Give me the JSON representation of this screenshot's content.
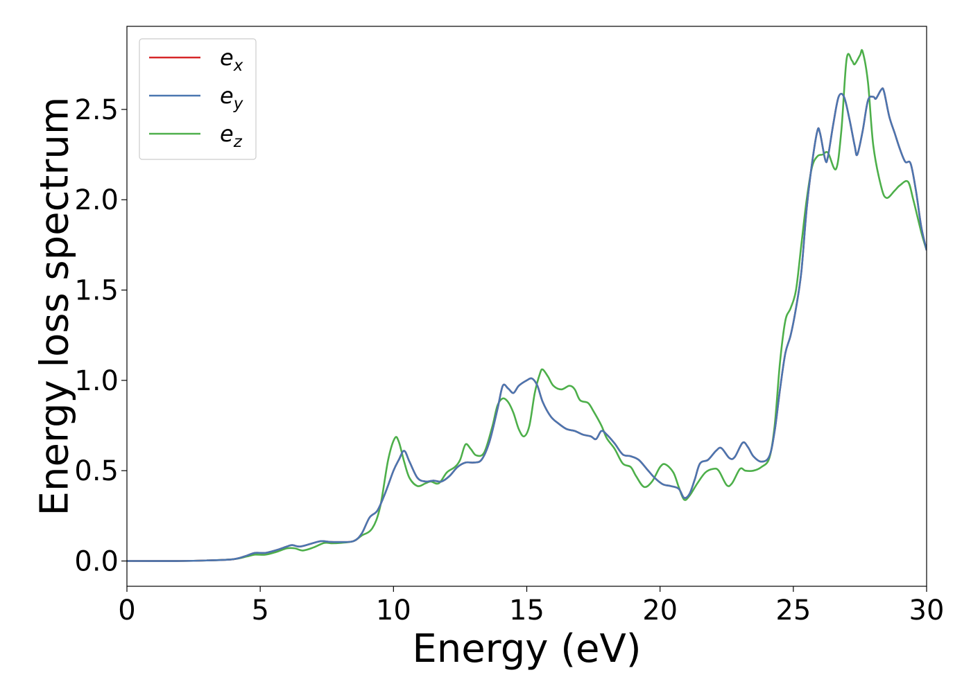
{
  "chart_data": {
    "type": "line",
    "title": "",
    "xlabel": "Energy (eV)",
    "ylabel": "Energy loss spectrum",
    "xlim": [
      0,
      30
    ],
    "ylim": [
      -0.14,
      2.96
    ],
    "xticks": [
      "0",
      "5",
      "10",
      "15",
      "20",
      "25",
      "30"
    ],
    "yticks": [
      "0.0",
      "0.5",
      "1.0",
      "1.5",
      "2.0",
      "2.5"
    ],
    "grid": false,
    "legend_position": "top-left",
    "series": [
      {
        "name": "e",
        "sub": "x",
        "color": "#d62728",
        "points": [
          [
            0,
            0
          ],
          [
            2,
            0
          ],
          [
            3,
            0.003
          ],
          [
            4,
            0.01
          ],
          [
            4.5,
            0.03
          ],
          [
            4.8,
            0.045
          ],
          [
            5.2,
            0.045
          ],
          [
            5.6,
            0.06
          ],
          [
            6,
            0.08
          ],
          [
            6.2,
            0.088
          ],
          [
            6.5,
            0.08
          ],
          [
            7,
            0.1
          ],
          [
            7.3,
            0.11
          ],
          [
            7.6,
            0.106
          ],
          [
            8,
            0.105
          ],
          [
            8.5,
            0.11
          ],
          [
            8.8,
            0.15
          ],
          [
            9.1,
            0.24
          ],
          [
            9.4,
            0.28
          ],
          [
            9.7,
            0.38
          ],
          [
            10.0,
            0.5
          ],
          [
            10.2,
            0.56
          ],
          [
            10.4,
            0.61
          ],
          [
            10.6,
            0.55
          ],
          [
            10.9,
            0.46
          ],
          [
            11.2,
            0.44
          ],
          [
            11.5,
            0.445
          ],
          [
            11.8,
            0.44
          ],
          [
            12.1,
            0.47
          ],
          [
            12.4,
            0.52
          ],
          [
            12.7,
            0.545
          ],
          [
            13.0,
            0.545
          ],
          [
            13.3,
            0.56
          ],
          [
            13.6,
            0.66
          ],
          [
            13.9,
            0.84
          ],
          [
            14.1,
            0.97
          ],
          [
            14.3,
            0.955
          ],
          [
            14.5,
            0.93
          ],
          [
            14.7,
            0.97
          ],
          [
            15.0,
            1.0
          ],
          [
            15.2,
            1.01
          ],
          [
            15.4,
            0.97
          ],
          [
            15.6,
            0.88
          ],
          [
            15.9,
            0.8
          ],
          [
            16.2,
            0.76
          ],
          [
            16.5,
            0.73
          ],
          [
            16.8,
            0.72
          ],
          [
            17.1,
            0.7
          ],
          [
            17.4,
            0.69
          ],
          [
            17.6,
            0.675
          ],
          [
            17.8,
            0.72
          ],
          [
            18.0,
            0.7
          ],
          [
            18.3,
            0.65
          ],
          [
            18.6,
            0.59
          ],
          [
            18.9,
            0.58
          ],
          [
            19.2,
            0.56
          ],
          [
            19.5,
            0.51
          ],
          [
            19.8,
            0.46
          ],
          [
            20.1,
            0.425
          ],
          [
            20.4,
            0.415
          ],
          [
            20.7,
            0.4
          ],
          [
            20.9,
            0.35
          ],
          [
            21.1,
            0.37
          ],
          [
            21.3,
            0.45
          ],
          [
            21.5,
            0.54
          ],
          [
            21.8,
            0.56
          ],
          [
            22.1,
            0.61
          ],
          [
            22.3,
            0.625
          ],
          [
            22.6,
            0.57
          ],
          [
            22.8,
            0.575
          ],
          [
            23.1,
            0.655
          ],
          [
            23.3,
            0.63
          ],
          [
            23.5,
            0.58
          ],
          [
            23.8,
            0.55
          ],
          [
            24.1,
            0.58
          ],
          [
            24.3,
            0.72
          ],
          [
            24.5,
            0.95
          ],
          [
            24.7,
            1.15
          ],
          [
            24.9,
            1.25
          ],
          [
            25.1,
            1.4
          ],
          [
            25.3,
            1.6
          ],
          [
            25.5,
            1.95
          ],
          [
            25.7,
            2.2
          ],
          [
            25.9,
            2.38
          ],
          [
            26.0,
            2.37
          ],
          [
            26.2,
            2.22
          ],
          [
            26.3,
            2.24
          ],
          [
            26.5,
            2.42
          ],
          [
            26.7,
            2.57
          ],
          [
            26.9,
            2.57
          ],
          [
            27.1,
            2.45
          ],
          [
            27.3,
            2.3
          ],
          [
            27.4,
            2.25
          ],
          [
            27.6,
            2.38
          ],
          [
            27.8,
            2.55
          ],
          [
            28.0,
            2.57
          ],
          [
            28.1,
            2.56
          ],
          [
            28.3,
            2.61
          ],
          [
            28.4,
            2.6
          ],
          [
            28.6,
            2.46
          ],
          [
            28.8,
            2.37
          ],
          [
            29.0,
            2.28
          ],
          [
            29.2,
            2.21
          ],
          [
            29.4,
            2.2
          ],
          [
            29.6,
            2.05
          ],
          [
            29.8,
            1.85
          ],
          [
            30,
            1.72
          ]
        ]
      },
      {
        "name": "e",
        "sub": "y",
        "color": "#4a76b0",
        "points": [
          [
            0,
            0
          ],
          [
            2,
            0
          ],
          [
            3,
            0.003
          ],
          [
            4,
            0.01
          ],
          [
            4.5,
            0.03
          ],
          [
            4.8,
            0.045
          ],
          [
            5.2,
            0.045
          ],
          [
            5.6,
            0.06
          ],
          [
            6,
            0.08
          ],
          [
            6.2,
            0.088
          ],
          [
            6.5,
            0.08
          ],
          [
            7,
            0.1
          ],
          [
            7.3,
            0.11
          ],
          [
            7.6,
            0.106
          ],
          [
            8,
            0.105
          ],
          [
            8.5,
            0.11
          ],
          [
            8.8,
            0.15
          ],
          [
            9.1,
            0.24
          ],
          [
            9.4,
            0.28
          ],
          [
            9.7,
            0.38
          ],
          [
            10.0,
            0.5
          ],
          [
            10.2,
            0.56
          ],
          [
            10.4,
            0.61
          ],
          [
            10.6,
            0.55
          ],
          [
            10.9,
            0.46
          ],
          [
            11.2,
            0.44
          ],
          [
            11.5,
            0.445
          ],
          [
            11.8,
            0.44
          ],
          [
            12.1,
            0.47
          ],
          [
            12.4,
            0.52
          ],
          [
            12.7,
            0.545
          ],
          [
            13.0,
            0.545
          ],
          [
            13.3,
            0.56
          ],
          [
            13.6,
            0.66
          ],
          [
            13.9,
            0.84
          ],
          [
            14.1,
            0.97
          ],
          [
            14.3,
            0.955
          ],
          [
            14.5,
            0.93
          ],
          [
            14.7,
            0.97
          ],
          [
            15.0,
            1.0
          ],
          [
            15.2,
            1.01
          ],
          [
            15.4,
            0.97
          ],
          [
            15.6,
            0.88
          ],
          [
            15.9,
            0.8
          ],
          [
            16.2,
            0.76
          ],
          [
            16.5,
            0.73
          ],
          [
            16.8,
            0.72
          ],
          [
            17.1,
            0.7
          ],
          [
            17.4,
            0.69
          ],
          [
            17.6,
            0.675
          ],
          [
            17.8,
            0.72
          ],
          [
            18.0,
            0.7
          ],
          [
            18.3,
            0.65
          ],
          [
            18.6,
            0.59
          ],
          [
            18.9,
            0.58
          ],
          [
            19.2,
            0.56
          ],
          [
            19.5,
            0.51
          ],
          [
            19.8,
            0.46
          ],
          [
            20.1,
            0.425
          ],
          [
            20.4,
            0.415
          ],
          [
            20.7,
            0.4
          ],
          [
            20.9,
            0.35
          ],
          [
            21.1,
            0.37
          ],
          [
            21.3,
            0.45
          ],
          [
            21.5,
            0.54
          ],
          [
            21.8,
            0.56
          ],
          [
            22.1,
            0.61
          ],
          [
            22.3,
            0.625
          ],
          [
            22.6,
            0.57
          ],
          [
            22.8,
            0.575
          ],
          [
            23.1,
            0.655
          ],
          [
            23.3,
            0.63
          ],
          [
            23.5,
            0.58
          ],
          [
            23.8,
            0.55
          ],
          [
            24.1,
            0.58
          ],
          [
            24.3,
            0.72
          ],
          [
            24.5,
            0.95
          ],
          [
            24.7,
            1.15
          ],
          [
            24.9,
            1.25
          ],
          [
            25.1,
            1.4
          ],
          [
            25.3,
            1.6
          ],
          [
            25.5,
            1.95
          ],
          [
            25.7,
            2.2
          ],
          [
            25.9,
            2.38
          ],
          [
            26.0,
            2.37
          ],
          [
            26.2,
            2.22
          ],
          [
            26.3,
            2.24
          ],
          [
            26.5,
            2.42
          ],
          [
            26.7,
            2.57
          ],
          [
            26.9,
            2.57
          ],
          [
            27.1,
            2.45
          ],
          [
            27.3,
            2.3
          ],
          [
            27.4,
            2.25
          ],
          [
            27.6,
            2.38
          ],
          [
            27.8,
            2.55
          ],
          [
            28.0,
            2.57
          ],
          [
            28.1,
            2.56
          ],
          [
            28.3,
            2.61
          ],
          [
            28.4,
            2.6
          ],
          [
            28.6,
            2.46
          ],
          [
            28.8,
            2.37
          ],
          [
            29.0,
            2.28
          ],
          [
            29.2,
            2.21
          ],
          [
            29.4,
            2.2
          ],
          [
            29.6,
            2.05
          ],
          [
            29.8,
            1.85
          ],
          [
            30,
            1.72
          ]
        ]
      },
      {
        "name": "e",
        "sub": "z",
        "color": "#4daf4a",
        "points": [
          [
            0,
            0
          ],
          [
            2,
            0
          ],
          [
            3,
            0.003
          ],
          [
            4,
            0.01
          ],
          [
            4.5,
            0.025
          ],
          [
            4.8,
            0.035
          ],
          [
            5.2,
            0.035
          ],
          [
            5.6,
            0.05
          ],
          [
            6,
            0.07
          ],
          [
            6.3,
            0.07
          ],
          [
            6.6,
            0.058
          ],
          [
            7,
            0.075
          ],
          [
            7.4,
            0.1
          ],
          [
            7.7,
            0.098
          ],
          [
            8,
            0.1
          ],
          [
            8.5,
            0.11
          ],
          [
            8.8,
            0.14
          ],
          [
            9.2,
            0.18
          ],
          [
            9.5,
            0.3
          ],
          [
            9.8,
            0.56
          ],
          [
            10.05,
            0.68
          ],
          [
            10.2,
            0.66
          ],
          [
            10.4,
            0.55
          ],
          [
            10.6,
            0.46
          ],
          [
            10.9,
            0.415
          ],
          [
            11.2,
            0.43
          ],
          [
            11.4,
            0.44
          ],
          [
            11.7,
            0.43
          ],
          [
            12.0,
            0.49
          ],
          [
            12.3,
            0.52
          ],
          [
            12.5,
            0.56
          ],
          [
            12.7,
            0.645
          ],
          [
            12.9,
            0.62
          ],
          [
            13.1,
            0.585
          ],
          [
            13.4,
            0.6
          ],
          [
            13.7,
            0.74
          ],
          [
            13.9,
            0.86
          ],
          [
            14.1,
            0.9
          ],
          [
            14.3,
            0.88
          ],
          [
            14.5,
            0.82
          ],
          [
            14.7,
            0.73
          ],
          [
            14.9,
            0.69
          ],
          [
            15.1,
            0.75
          ],
          [
            15.3,
            0.93
          ],
          [
            15.5,
            1.04
          ],
          [
            15.6,
            1.06
          ],
          [
            15.8,
            1.02
          ],
          [
            16.0,
            0.97
          ],
          [
            16.3,
            0.95
          ],
          [
            16.6,
            0.97
          ],
          [
            16.8,
            0.95
          ],
          [
            17.0,
            0.89
          ],
          [
            17.3,
            0.875
          ],
          [
            17.5,
            0.83
          ],
          [
            17.8,
            0.75
          ],
          [
            18.0,
            0.68
          ],
          [
            18.3,
            0.62
          ],
          [
            18.6,
            0.54
          ],
          [
            18.9,
            0.52
          ],
          [
            19.1,
            0.47
          ],
          [
            19.4,
            0.41
          ],
          [
            19.7,
            0.44
          ],
          [
            20.0,
            0.52
          ],
          [
            20.2,
            0.535
          ],
          [
            20.5,
            0.49
          ],
          [
            20.7,
            0.41
          ],
          [
            20.9,
            0.34
          ],
          [
            21.1,
            0.36
          ],
          [
            21.4,
            0.43
          ],
          [
            21.7,
            0.49
          ],
          [
            22.0,
            0.51
          ],
          [
            22.2,
            0.5
          ],
          [
            22.5,
            0.42
          ],
          [
            22.7,
            0.43
          ],
          [
            23.0,
            0.51
          ],
          [
            23.2,
            0.5
          ],
          [
            23.5,
            0.5
          ],
          [
            23.8,
            0.52
          ],
          [
            24.1,
            0.57
          ],
          [
            24.3,
            0.75
          ],
          [
            24.5,
            1.1
          ],
          [
            24.7,
            1.33
          ],
          [
            24.9,
            1.4
          ],
          [
            25.1,
            1.5
          ],
          [
            25.3,
            1.75
          ],
          [
            25.5,
            2.0
          ],
          [
            25.7,
            2.18
          ],
          [
            25.9,
            2.24
          ],
          [
            26.1,
            2.25
          ],
          [
            26.3,
            2.26
          ],
          [
            26.6,
            2.17
          ],
          [
            26.8,
            2.38
          ],
          [
            27.0,
            2.78
          ],
          [
            27.2,
            2.77
          ],
          [
            27.3,
            2.75
          ],
          [
            27.5,
            2.8
          ],
          [
            27.6,
            2.82
          ],
          [
            27.8,
            2.65
          ],
          [
            28.0,
            2.3
          ],
          [
            28.3,
            2.07
          ],
          [
            28.5,
            2.01
          ],
          [
            28.8,
            2.05
          ],
          [
            29.0,
            2.08
          ],
          [
            29.3,
            2.1
          ],
          [
            29.5,
            2.0
          ],
          [
            29.8,
            1.82
          ],
          [
            30,
            1.72
          ]
        ]
      }
    ]
  }
}
